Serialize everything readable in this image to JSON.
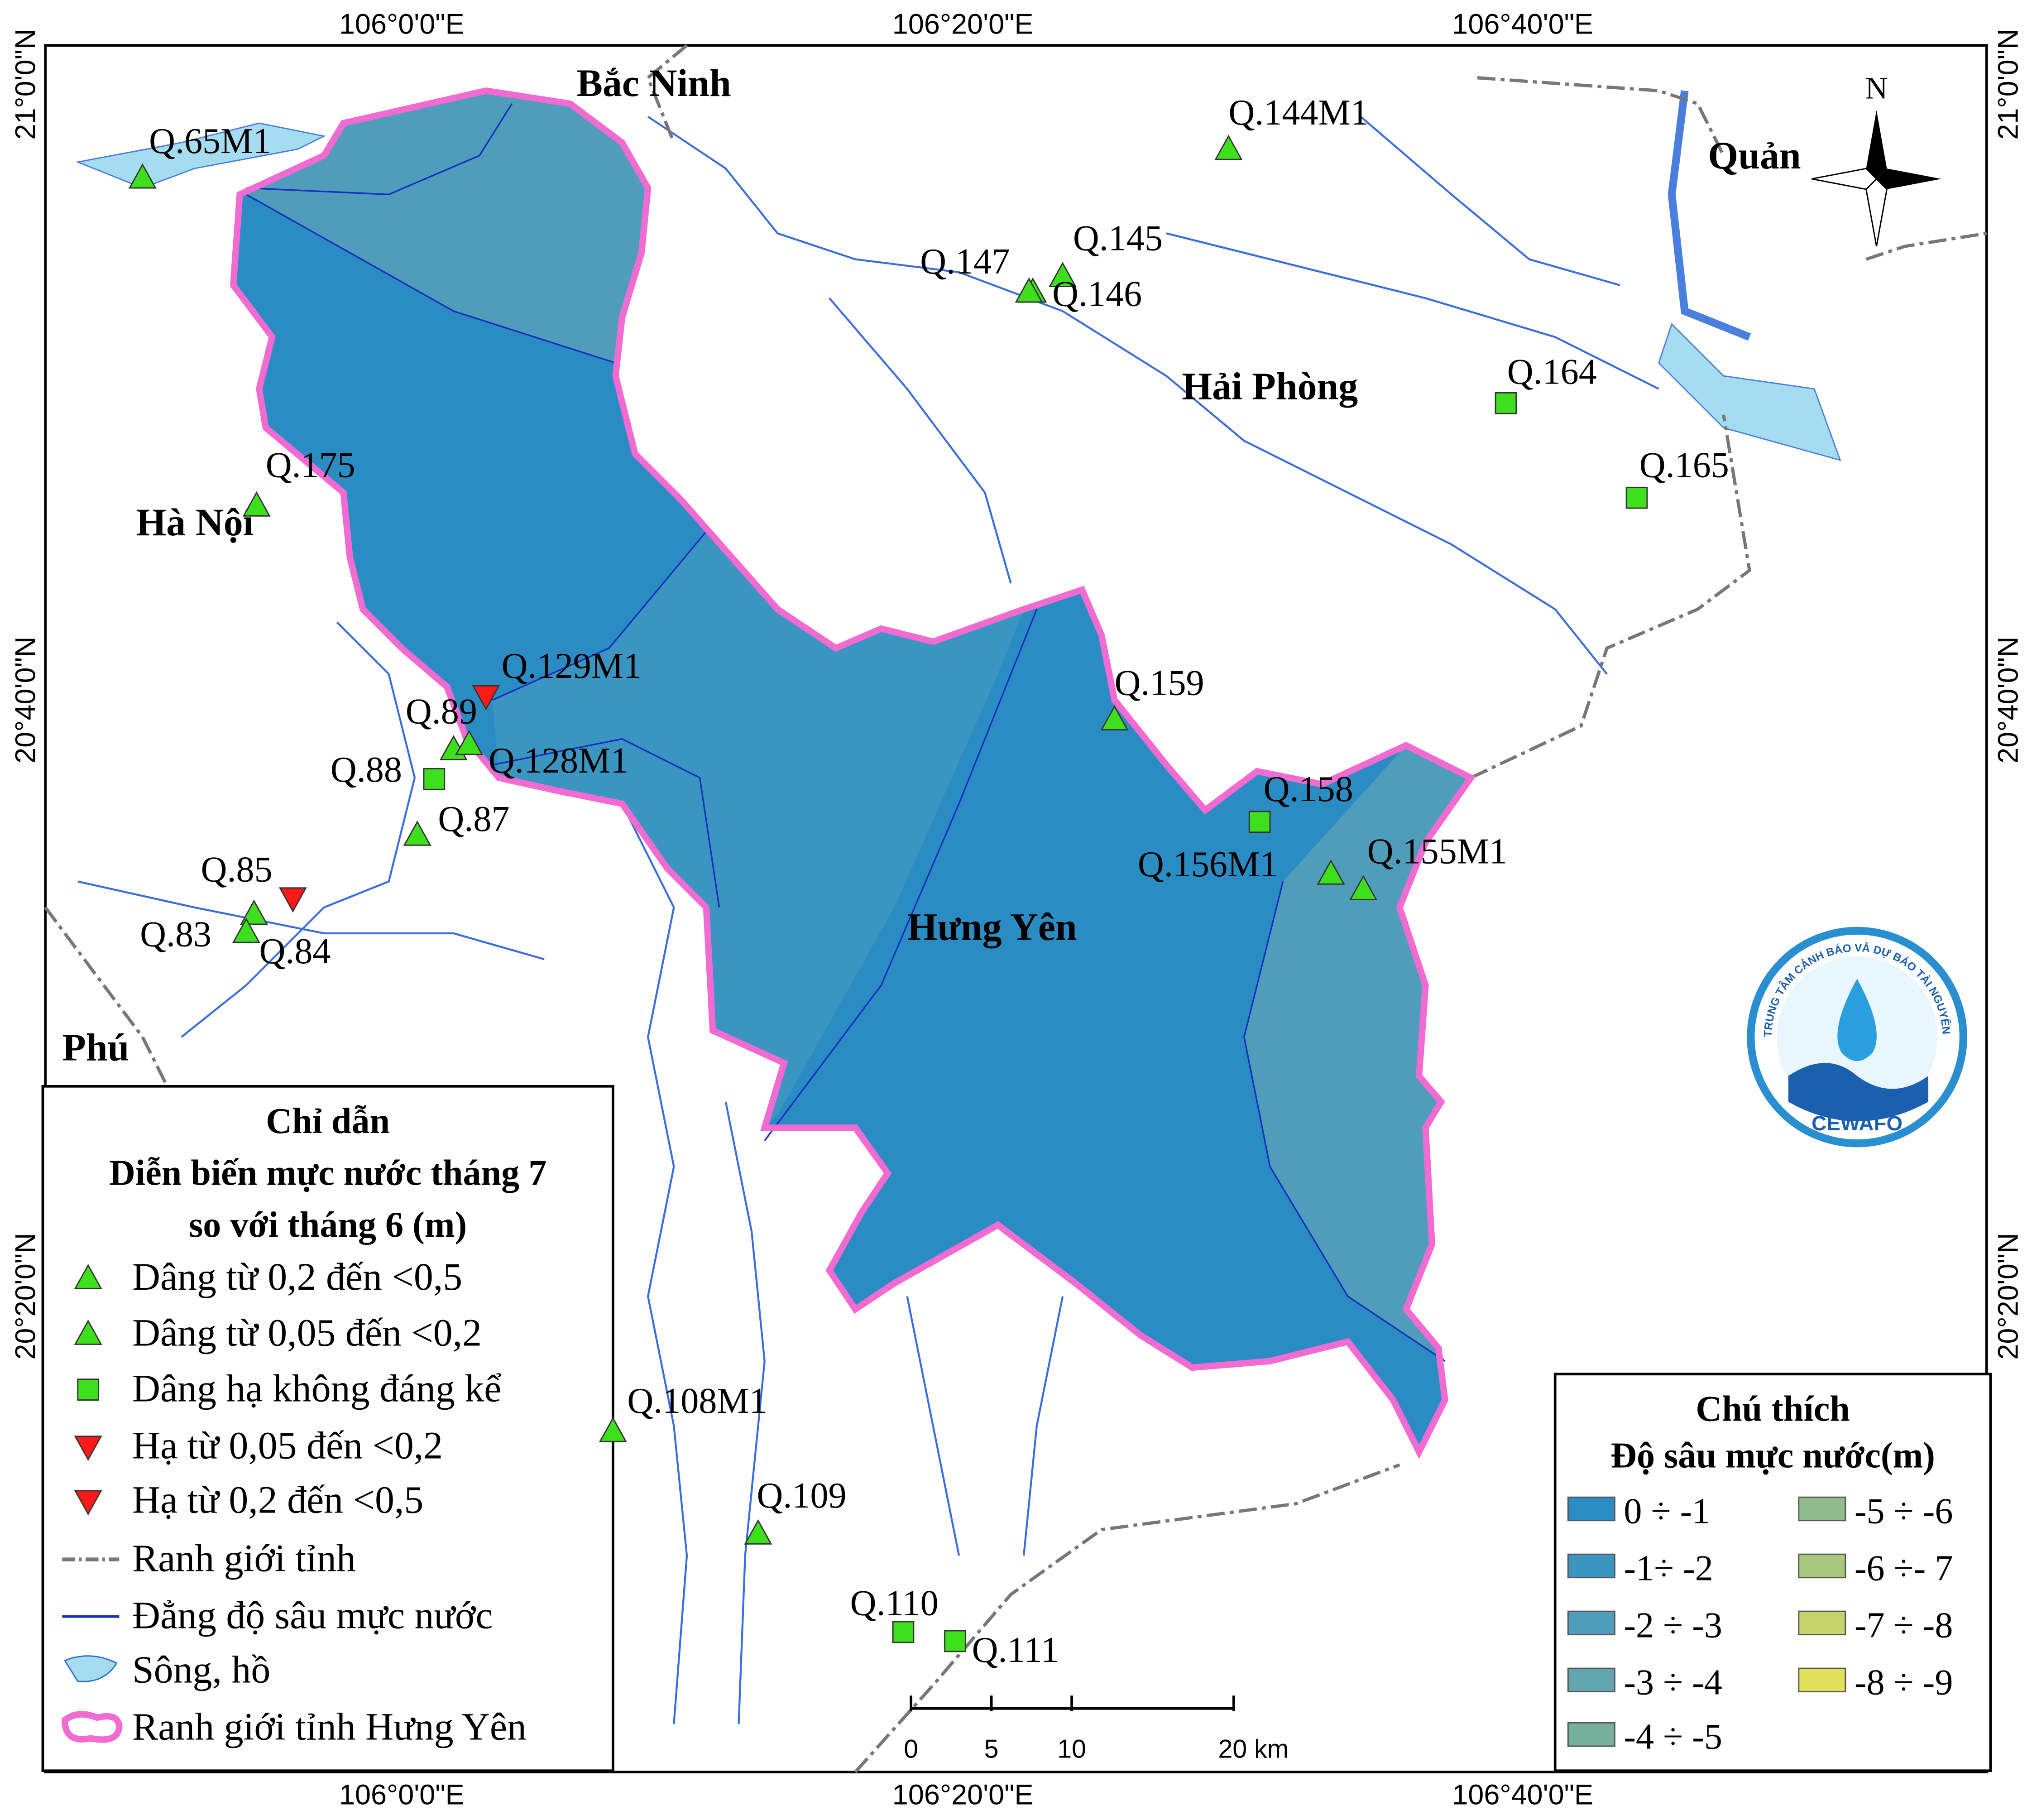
{
  "graticule": {
    "top": [
      "106°0'0\"E",
      "106°20'0\"E",
      "106°40'0\"E"
    ],
    "bottom": [
      "106°0'0\"E",
      "106°20'0\"E",
      "106°40'0\"E"
    ],
    "left": [
      "21°0'0\"N",
      "20°40'0\"N",
      "20°20'0\"N"
    ],
    "right": [
      "21°0'0\"N",
      "20°40'0\"N",
      "20°20'0\"N"
    ]
  },
  "places": [
    "Bắc Ninh",
    "Hà Nội",
    "Hải Phòng",
    "Hưng Yên",
    "Quản",
    "Phú"
  ],
  "stations": [
    "Q.65M1",
    "Q.144M1",
    "Q.145",
    "Q.147",
    "Q.146",
    "Q.164",
    "Q.165",
    "Q.175",
    "Q.129M1",
    "Q.89",
    "Q.128M1",
    "Q.88",
    "Q.87",
    "Q.159",
    "Q.158",
    "Q.156M1",
    "Q.155M1",
    "Q.85",
    "Q.83",
    "Q.84",
    "Q.108M1",
    "Q.109",
    "Q.110",
    "Q.111"
  ],
  "legend": {
    "title": [
      "Chỉ dẫn",
      "Diễn biến mực nước tháng 7",
      "so với tháng 6 (m)"
    ],
    "items": [
      "Dâng từ 0,2 đến <0,5",
      "Dâng từ 0,05 đến <0,2",
      "Dâng hạ không đáng kể",
      "Hạ từ 0,05 đến <0,2",
      "Hạ từ 0,2 đến <0,5",
      "Ranh giới tỉnh",
      "Đẳng độ sâu mực nước",
      "Sông, hồ",
      "Ranh giới tỉnh Hưng Yên"
    ]
  },
  "depth_legend": {
    "title": [
      "Chú thích",
      "Độ sâu mực nước(m)"
    ],
    "items": [
      "0 ÷ -1",
      "-1÷ -2",
      "-2 ÷ -3",
      "-3 ÷ -4",
      "-4 ÷ -5",
      "-5 ÷ -6",
      "-6 ÷- 7",
      "-7 ÷ -8",
      "-8 ÷ -9"
    ]
  },
  "scale_bar": [
    "0",
    "5",
    "10",
    "20 km"
  ],
  "north": "N",
  "logo": {
    "name": "CEWAFO",
    "org": "TRUNG TÂM CẢNH BÁO VÀ DỰ BÁO TÀI NGUYÊN NƯỚC"
  }
}
